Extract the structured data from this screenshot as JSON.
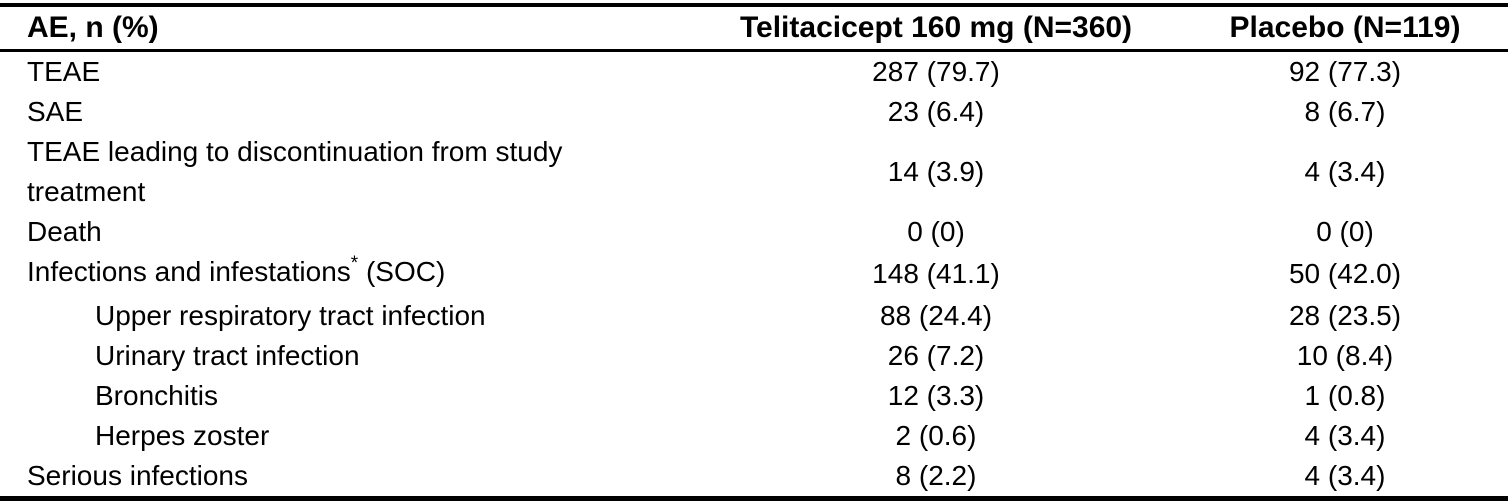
{
  "chart_data": {
    "type": "table",
    "columns": [
      "AE, n (%)",
      "Telitacicept 160 mg (N=360)",
      "Placebo (N=119)"
    ],
    "rows": [
      {
        "label": "TEAE",
        "sup": "",
        "suffix": "",
        "indent": false,
        "values": [
          "287 (79.7)",
          "92 (77.3)"
        ]
      },
      {
        "label": "SAE",
        "sup": "",
        "suffix": "",
        "indent": false,
        "values": [
          "23 (6.4)",
          "8 (6.7)"
        ]
      },
      {
        "label": "TEAE leading to discontinuation from study treatment",
        "sup": "",
        "suffix": "",
        "indent": false,
        "values": [
          "14 (3.9)",
          "4 (3.4)"
        ]
      },
      {
        "label": "Death",
        "sup": "",
        "suffix": "",
        "indent": false,
        "values": [
          "0 (0)",
          "0 (0)"
        ]
      },
      {
        "label": "Infections and infestations",
        "sup": "*",
        "suffix": " (SOC)",
        "indent": false,
        "values": [
          "148 (41.1)",
          "50 (42.0)"
        ]
      },
      {
        "label": "Upper respiratory tract infection",
        "sup": "",
        "suffix": "",
        "indent": true,
        "values": [
          "88 (24.4)",
          "28 (23.5)"
        ]
      },
      {
        "label": "Urinary tract infection",
        "sup": "",
        "suffix": "",
        "indent": true,
        "values": [
          "26 (7.2)",
          "10 (8.4)"
        ]
      },
      {
        "label": "Bronchitis",
        "sup": "",
        "suffix": "",
        "indent": true,
        "values": [
          "12 (3.3)",
          "1 (0.8)"
        ]
      },
      {
        "label": "Herpes zoster",
        "sup": "",
        "suffix": "",
        "indent": true,
        "values": [
          "2 (0.6)",
          "4 (3.4)"
        ]
      },
      {
        "label": "Serious infections",
        "sup": "",
        "suffix": "",
        "indent": false,
        "values": [
          "8 (2.2)",
          "4 (3.4)"
        ]
      }
    ],
    "colors": {
      "text": "#000000",
      "background": "#ffffff",
      "border": "#000000"
    }
  }
}
